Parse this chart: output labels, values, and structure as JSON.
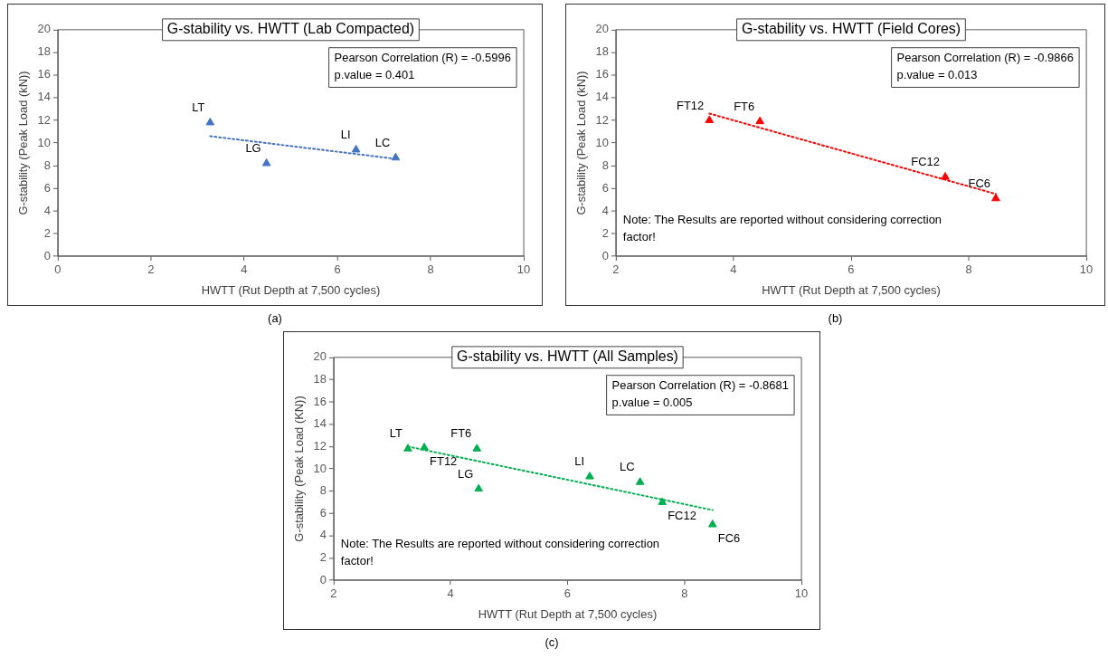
{
  "chart_data": [
    {
      "type": "scatter",
      "title": "G-stability vs. HWTT (Lab Compacted)",
      "xlabel": "HWTT (Rut Depth at 7,500 cycles)",
      "ylabel": "G-stability (Peak Load (kN))",
      "xlim": [
        0,
        10
      ],
      "xticks": [
        0,
        2,
        4,
        6,
        8,
        10
      ],
      "ylim": [
        0,
        20
      ],
      "yticks": [
        0,
        2,
        4,
        6,
        8,
        10,
        12,
        14,
        16,
        18,
        20
      ],
      "grid": false,
      "legend": false,
      "marker": "triangle",
      "series": [
        {
          "type": "scatter",
          "color": "#4472c4",
          "x": [
            3.27,
            4.48,
            6.4,
            7.25
          ],
          "values": [
            11.8,
            8.2,
            9.4,
            8.7
          ]
        },
        {
          "type": "line",
          "color": "#4472c4",
          "line_style": "dotted",
          "marker": "none",
          "x": [
            3.27,
            7.25
          ],
          "values": [
            10.6,
            8.6
          ]
        }
      ],
      "annotations": [
        "Pearson Correlation (R) = -0.5996\np.value = 0.401",
        {
          "text": "LT",
          "x": 3.27,
          "y": 11.8
        },
        {
          "text": "LG",
          "x": 4.48,
          "y": 8.2
        },
        {
          "text": "LI",
          "x": 6.4,
          "y": 9.4
        },
        {
          "text": "LC",
          "x": 7.25,
          "y": 8.7
        },
        "(a)"
      ]
    },
    {
      "type": "scatter",
      "title": "G-stability vs. HWTT (Field Cores)",
      "xlabel": "HWTT (Rut Depth at 7,500 cycles)",
      "ylabel": "G-stability (Peak Load (kN))",
      "xlim": [
        2,
        10
      ],
      "xticks": [
        2,
        4,
        6,
        8,
        10
      ],
      "ylim": [
        0,
        20
      ],
      "yticks": [
        0,
        2,
        4,
        6,
        8,
        10,
        12,
        14,
        16,
        18,
        20
      ],
      "grid": false,
      "legend": false,
      "marker": "triangle",
      "series": [
        {
          "type": "scatter",
          "color": "#ff0000",
          "x": [
            3.59,
            4.45,
            7.6,
            8.46
          ],
          "values": [
            12.0,
            11.9,
            7.0,
            5.1
          ]
        },
        {
          "type": "line",
          "color": "#ff0000",
          "line_style": "dotted",
          "marker": "none",
          "x": [
            3.59,
            8.46
          ],
          "values": [
            12.6,
            5.5
          ]
        }
      ],
      "annotations": [
        "Pearson Correlation (R) = -0.9866\np.value = 0.013",
        "Note: The Results are reported without considering correction factor!",
        {
          "text": "FT12",
          "x": 3.59,
          "y": 12.0
        },
        {
          "text": "FT6",
          "x": 4.45,
          "y": 11.9
        },
        {
          "text": "FC12",
          "x": 7.6,
          "y": 7.0
        },
        {
          "text": "FC6",
          "x": 8.46,
          "y": 5.1
        },
        "(b)"
      ]
    },
    {
      "type": "scatter",
      "title": "G-stability vs. HWTT (All Samples)",
      "xlabel": "HWTT (Rut Depth at 7,500 cycles)",
      "ylabel": "G-stability (Peak Load (KN))",
      "xlim": [
        2,
        10
      ],
      "xticks": [
        2,
        4,
        6,
        8,
        10
      ],
      "ylim": [
        0,
        20
      ],
      "yticks": [
        0,
        2,
        4,
        6,
        8,
        10,
        12,
        14,
        16,
        18,
        20
      ],
      "grid": false,
      "legend": false,
      "marker": "triangle",
      "series": [
        {
          "type": "scatter",
          "color": "#00b050",
          "x": [
            3.27,
            3.55,
            4.45,
            4.48,
            6.38,
            7.24,
            7.62,
            8.48
          ],
          "values": [
            11.8,
            11.9,
            11.8,
            8.2,
            9.3,
            8.8,
            7.0,
            5.0
          ]
        },
        {
          "type": "line",
          "color": "#00b050",
          "line_style": "dotted",
          "marker": "none",
          "x": [
            3.27,
            8.48
          ],
          "values": [
            12.0,
            6.3
          ]
        }
      ],
      "annotations": [
        "Pearson Correlation (R) = -0.8681\np.value = 0.005",
        "Note: The Results are reported without considering correction factor!",
        {
          "text": "LT",
          "x": 3.27,
          "y": 11.8
        },
        {
          "text": "FT12",
          "x": 3.55,
          "y": 11.9
        },
        {
          "text": "FT6",
          "x": 4.45,
          "y": 11.8
        },
        {
          "text": "LG",
          "x": 4.48,
          "y": 8.2
        },
        {
          "text": "LI",
          "x": 6.38,
          "y": 9.3
        },
        {
          "text": "LC",
          "x": 7.24,
          "y": 8.8
        },
        {
          "text": "FC12",
          "x": 7.62,
          "y": 7.0
        },
        {
          "text": "FC6",
          "x": 8.48,
          "y": 5.0
        },
        "(c)"
      ]
    }
  ]
}
